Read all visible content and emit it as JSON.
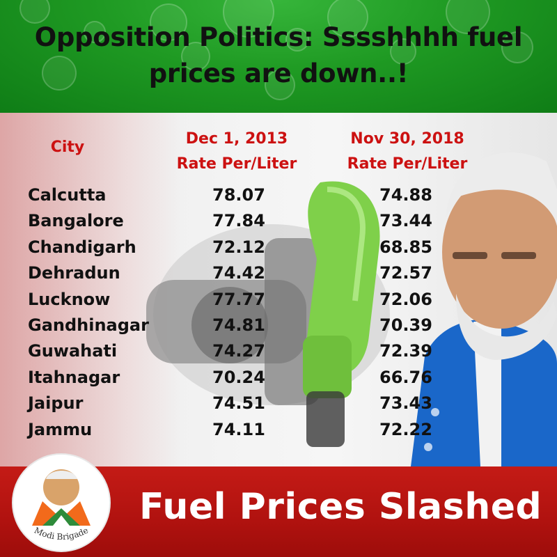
{
  "title_line1": "Opposition Politics: Sssshhhh fuel",
  "title_line2": "prices are down..!",
  "table": {
    "city_header": "City",
    "col1_header_line1": "Dec 1, 2013",
    "col1_header_line2": "Rate Per/Liter",
    "col2_header_line1": "Nov 30, 2018",
    "col2_header_line2": "Rate Per/Liter",
    "rows": [
      {
        "city": "Calcutta",
        "v2013": "78.07",
        "v2018": "74.88"
      },
      {
        "city": "Bangalore",
        "v2013": "77.84",
        "v2018": "73.44"
      },
      {
        "city": "Chandigarh",
        "v2013": "72.12",
        "v2018": "68.85"
      },
      {
        "city": "Dehradun",
        "v2013": "74.42",
        "v2018": "72.57"
      },
      {
        "city": "Lucknow",
        "v2013": "77.77",
        "v2018": "72.06"
      },
      {
        "city": "Gandhinagar",
        "v2013": "74.81",
        "v2018": "70.39"
      },
      {
        "city": "Guwahati",
        "v2013": "74.27",
        "v2018": "72.39"
      },
      {
        "city": "Itahnagar",
        "v2013": "70.24",
        "v2018": "66.76"
      },
      {
        "city": "Jaipur",
        "v2013": "74.51",
        "v2018": "73.43"
      },
      {
        "city": "Jammu",
        "v2013": "74.11",
        "v2018": "72.22"
      }
    ]
  },
  "footer_text": "Fuel Prices Slashed",
  "logo_text": "Modi Brigade",
  "colors": {
    "header_green": "#1f9a23",
    "header_text": "#cc1111",
    "footer_red": "#b0120f",
    "nozzle_green": "#7fd04a"
  }
}
